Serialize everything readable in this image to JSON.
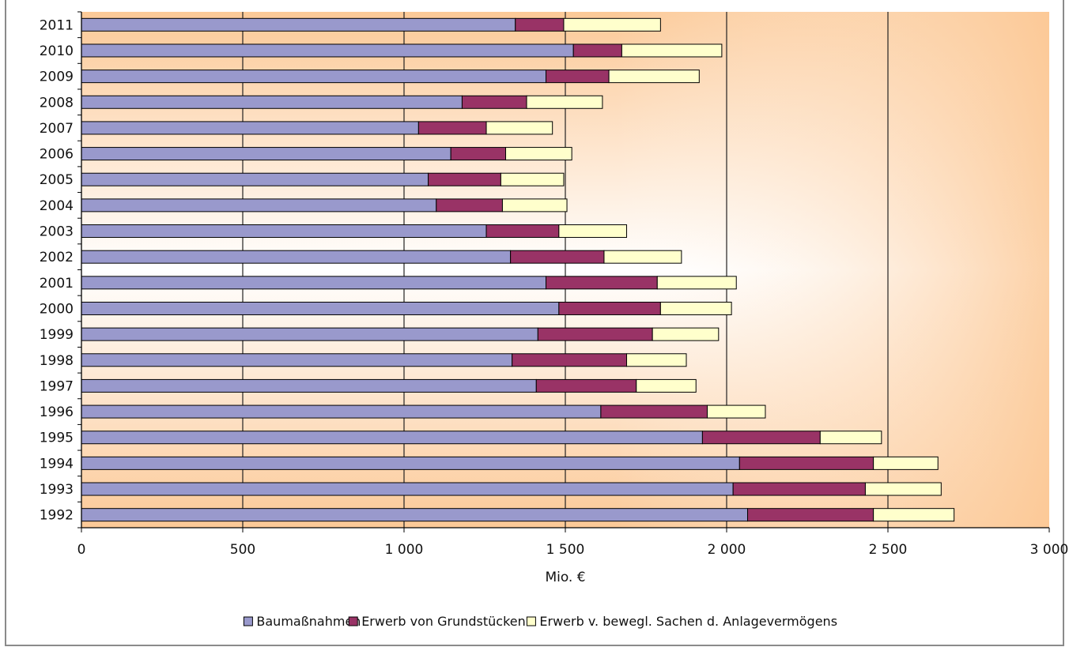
{
  "chart_data": {
    "type": "bar",
    "orientation": "horizontal",
    "stacked": true,
    "categories": [
      "2011",
      "2010",
      "2009",
      "2008",
      "2007",
      "2006",
      "2005",
      "2004",
      "2003",
      "2002",
      "2001",
      "2000",
      "1999",
      "1998",
      "1997",
      "1996",
      "1995",
      "1994",
      "1993",
      "1992"
    ],
    "series": [
      {
        "name": "Baumaßnahmen",
        "color": "#9999cc",
        "values": [
          1345,
          1525,
          1440,
          1180,
          1045,
          1145,
          1075,
          1100,
          1255,
          1330,
          1440,
          1480,
          1415,
          1335,
          1410,
          1610,
          1925,
          2040,
          2020,
          2065
        ]
      },
      {
        "name": "Erwerb von Grundstücken",
        "color": "#993366",
        "values": [
          150,
          150,
          195,
          200,
          210,
          170,
          225,
          205,
          225,
          290,
          345,
          315,
          355,
          355,
          310,
          330,
          365,
          415,
          410,
          390
        ]
      },
      {
        "name": "Erwerb v. bewegl. Sachen d. Anlagevermögens",
        "color": "#ffffcc",
        "values": [
          300,
          310,
          280,
          235,
          205,
          205,
          195,
          200,
          210,
          240,
          245,
          220,
          205,
          185,
          185,
          180,
          190,
          200,
          235,
          250
        ]
      }
    ],
    "xlabel": "Mio. €",
    "ylabel": "",
    "xlim": [
      0,
      3000
    ],
    "xticks": [
      0,
      500,
      1000,
      1500,
      2000,
      2500,
      3000
    ],
    "xtick_labels": [
      "0",
      "500",
      "1 000",
      "1 500",
      "2 000",
      "2 500",
      "3 000"
    ],
    "grid": "vertical lines at 2000 and 2500",
    "legend_position": "bottom"
  }
}
